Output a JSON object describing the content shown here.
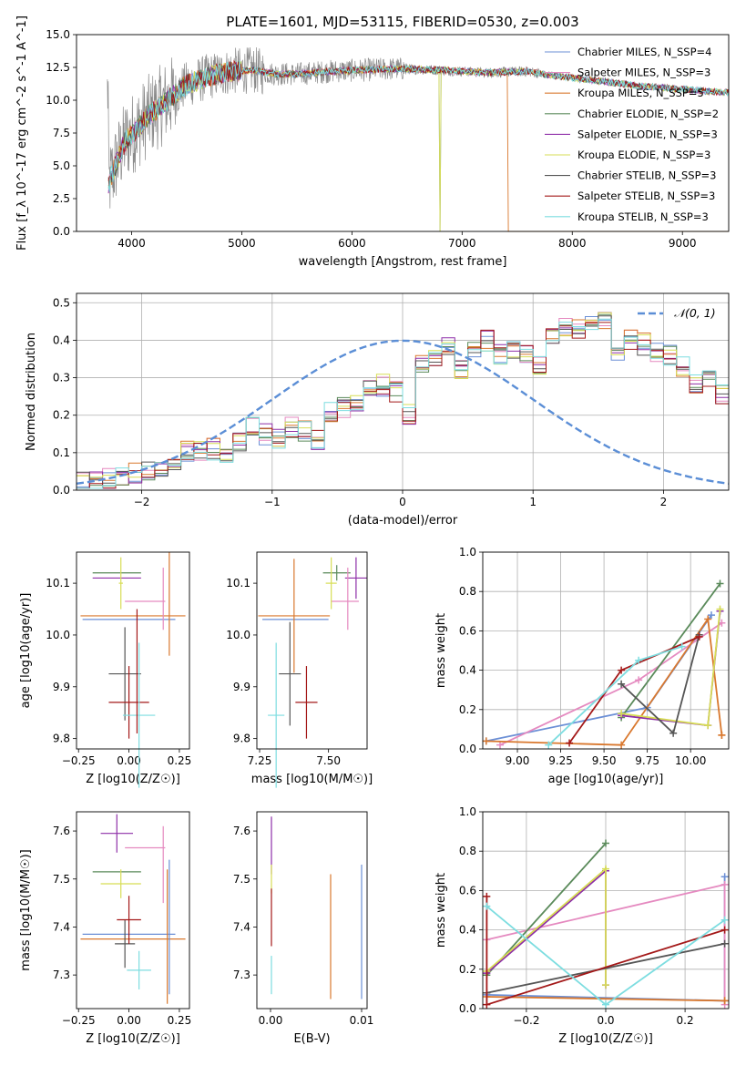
{
  "figure_title": "PLATE=1601, MJD=53115, FIBERID=0530, z=0.003",
  "colors": {
    "Chabrier MILES": "#6b8fd6",
    "Salpeter MILES": "#e58ac0",
    "Kroupa MILES": "#d9782e",
    "Chabrier ELODIE": "#5a8a5a",
    "Salpeter ELODIE": "#8e2fa8",
    "Kroupa ELODIE": "#d7dd55",
    "Chabrier STELIB": "#555555",
    "Salpeter STELIB": "#a31818",
    "Kroupa STELIB": "#7ddde0",
    "gaussian": "#5b8ed6"
  },
  "chart_data": [
    {
      "id": "spectrum",
      "type": "line",
      "title": "PLATE=1601, MJD=53115, FIBERID=0530, z=0.003",
      "xlabel": "wavelength [Angstrom, rest frame]",
      "ylabel": "Flux [f_λ 10^-17 erg cm^-2 s^-1 A^-1]",
      "xlim": [
        3500,
        9420
      ],
      "ylim": [
        0,
        15
      ],
      "xticks": [
        4000,
        5000,
        6000,
        7000,
        8000,
        9000
      ],
      "yticks": [
        0.0,
        2.5,
        5.0,
        7.5,
        10.0,
        12.5,
        15.0
      ],
      "legend": "top-right",
      "legend_entries": [
        "Chabrier MILES, N_SSP=4",
        "Salpeter MILES, N_SSP=3",
        "Kroupa MILES, N_SSP=5",
        "Chabrier ELODIE, N_SSP=2",
        "Salpeter ELODIE, N_SSP=3",
        "Kroupa ELODIE, N_SSP=3",
        "Chabrier STELIB, N_SSP=3",
        "Salpeter STELIB, N_SSP=3",
        "Kroupa STELIB, N_SSP=3"
      ],
      "continuum": {
        "x": [
          3790,
          3850,
          3950,
          4050,
          4150,
          4300,
          4500,
          4700,
          4900,
          5100,
          5300,
          5500,
          5800,
          6100,
          6400,
          6800,
          7200,
          7600,
          7800,
          8000,
          8300,
          8600,
          8900,
          9200,
          9420
        ],
        "y": [
          3.5,
          5.0,
          7.0,
          7.8,
          8.8,
          9.8,
          11.2,
          11.8,
          12.2,
          12.3,
          12.0,
          12.0,
          12.2,
          12.3,
          12.4,
          12.3,
          12.1,
          12.2,
          11.9,
          11.7,
          11.4,
          11.1,
          10.9,
          10.7,
          10.6
        ]
      },
      "data_extent": [
        3780,
        7700
      ],
      "model_extent": [
        3790,
        9420
      ],
      "dropouts": [
        {
          "series": "Kroupa MILES",
          "from": 7420
        },
        {
          "series": "Kroupa ELODIE",
          "at": 6800
        },
        {
          "series": "Chabrier MILES",
          "at": 6800
        }
      ]
    },
    {
      "id": "residual-hist",
      "type": "line",
      "xlabel": "(data-model)/error",
      "ylabel": "Normed distribution",
      "xlim": [
        -2.5,
        2.5
      ],
      "ylim": [
        0,
        0.525
      ],
      "xticks": [
        -2,
        -1,
        0,
        1,
        2
      ],
      "xtick_labels": [
        "−2",
        "−1",
        "0",
        "1",
        "2"
      ],
      "yticks": [
        0.0,
        0.1,
        0.2,
        0.3,
        0.4,
        0.5
      ],
      "grid": true,
      "legend": "top-right",
      "legend_entries": [
        "N(0,1)"
      ],
      "bin_width": 0.1,
      "bin_start": -2.5,
      "base_density": [
        0.02,
        0.025,
        0.03,
        0.035,
        0.045,
        0.05,
        0.055,
        0.075,
        0.105,
        0.1,
        0.11,
        0.09,
        0.13,
        0.17,
        0.15,
        0.14,
        0.17,
        0.16,
        0.13,
        0.21,
        0.22,
        0.23,
        0.28,
        0.28,
        0.26,
        0.2,
        0.33,
        0.35,
        0.38,
        0.32,
        0.37,
        0.4,
        0.36,
        0.37,
        0.37,
        0.33,
        0.42,
        0.44,
        0.43,
        0.45,
        0.46,
        0.37,
        0.4,
        0.39,
        0.37,
        0.36,
        0.33,
        0.28,
        0.29,
        0.26,
        0.28,
        0.26,
        0.3,
        0.24,
        0.22,
        0.26,
        0.24,
        0.2,
        0.18,
        0.18,
        0.16,
        0.15,
        0.13,
        0.1,
        0.1,
        0.08,
        0.08,
        0.06,
        0.05,
        0.045,
        0.04,
        0.035,
        0.03,
        0.025
      ]
    },
    {
      "id": "age-vs-Z",
      "type": "scatter",
      "xlabel": "Z [log10(Z/Z☉)]",
      "ylabel": "age [log10(age/yr)]",
      "xlim": [
        -0.26,
        0.3
      ],
      "ylim": [
        9.78,
        10.16
      ],
      "xticks": [
        -0.25,
        0.0,
        0.25
      ],
      "xtick_labels": [
        "−0.25",
        "0.00",
        "0.25"
      ],
      "yticks": [
        9.8,
        9.9,
        10.0,
        10.1
      ],
      "points": [
        {
          "series": "Chabrier MILES",
          "x": 0.0,
          "xerr": 0.23,
          "y": 10.03,
          "yerr": 0.0
        },
        {
          "series": "Salpeter MILES",
          "x": 0.08,
          "xerr": 0.1,
          "y": 10.065,
          "yerr": 0.0
        },
        {
          "series": "Kroupa MILES",
          "x": 0.02,
          "xerr": 0.26,
          "y": 10.037,
          "yerr": 0.0
        },
        {
          "series": "Chabrier ELODIE",
          "x": -0.06,
          "xerr": 0.12,
          "y": 10.12,
          "yerr": 0.0
        },
        {
          "series": "Salpeter ELODIE",
          "x": -0.06,
          "xerr": 0.12,
          "y": 10.11,
          "yerr": 0.0
        },
        {
          "series": "Kroupa ELODIE",
          "x": -0.04,
          "xerr": 0.01,
          "y": 10.1,
          "yerr": 0.05
        },
        {
          "series": "Chabrier STELIB",
          "x": -0.02,
          "xerr": 0.08,
          "y": 9.925,
          "yerr": 0.09
        },
        {
          "series": "Salpeter STELIB",
          "x": 0.0,
          "xerr": 0.1,
          "y": 9.87,
          "yerr": 0.07
        },
        {
          "series": "Kroupa STELIB",
          "x": 0.05,
          "xerr": 0.08,
          "y": 9.845,
          "yerr": 0.14
        },
        {
          "series": "Kroupa MILES",
          "x": 0.2,
          "xerr": 0.0,
          "y": 10.06,
          "yerr": 0.1
        },
        {
          "series": "Salpeter MILES",
          "x": 0.17,
          "xerr": 0.0,
          "y": 10.07,
          "yerr": 0.06
        },
        {
          "series": "Salpeter STELIB",
          "x": 0.04,
          "xerr": 0.0,
          "y": 9.93,
          "yerr": 0.12
        }
      ]
    },
    {
      "id": "age-vs-mass",
      "type": "scatter",
      "xlabel": "mass [log10(M/M☉)]",
      "ylabel": "",
      "xlim": [
        7.24,
        7.64
      ],
      "ylim": [
        9.78,
        10.16
      ],
      "xticks": [
        7.25,
        7.5
      ],
      "xtick_labels": [
        "7.25",
        "7.50"
      ],
      "yticks": [
        9.8,
        9.9,
        10.0,
        10.1
      ],
      "points": [
        {
          "series": "Chabrier MILES",
          "x": 7.38,
          "xerr": 0.12,
          "y": 10.03,
          "yerr": 0.0
        },
        {
          "series": "Salpeter MILES",
          "x": 7.56,
          "xerr": 0.05,
          "y": 10.065,
          "yerr": 0.0
        },
        {
          "series": "Kroupa MILES",
          "x": 7.375,
          "xerr": 0.13,
          "y": 10.037,
          "yerr": 0.11
        },
        {
          "series": "Chabrier ELODIE",
          "x": 7.53,
          "xerr": 0.05,
          "y": 10.12,
          "yerr": 0.015
        },
        {
          "series": "Salpeter ELODIE",
          "x": 7.6,
          "xerr": 0.04,
          "y": 10.11,
          "yerr": 0.04
        },
        {
          "series": "Kroupa ELODIE",
          "x": 7.51,
          "xerr": 0.02,
          "y": 10.1,
          "yerr": 0.05
        },
        {
          "series": "Chabrier STELIB",
          "x": 7.36,
          "xerr": 0.04,
          "y": 9.925,
          "yerr": 0.1
        },
        {
          "series": "Salpeter STELIB",
          "x": 7.42,
          "xerr": 0.04,
          "y": 9.87,
          "yerr": 0.07
        },
        {
          "series": "Kroupa STELIB",
          "x": 7.31,
          "xerr": 0.03,
          "y": 9.845,
          "yerr": 0.14
        },
        {
          "series": "Salpeter MILES",
          "x": 7.57,
          "xerr": 0.0,
          "y": 10.07,
          "yerr": 0.06
        }
      ]
    },
    {
      "id": "weight-vs-age",
      "type": "line",
      "xlabel": "age [log10(age/yr)]",
      "ylabel": "mass weight",
      "xlim": [
        8.8,
        10.22
      ],
      "ylim": [
        0,
        1.0
      ],
      "xticks": [
        9.0,
        9.25,
        9.5,
        9.75,
        10.0
      ],
      "xtick_labels": [
        "9.00",
        "9.25",
        "9.50",
        "9.75",
        "10.00"
      ],
      "yticks": [
        0.0,
        0.2,
        0.4,
        0.6,
        0.8,
        1.0
      ],
      "grid": true,
      "series": [
        {
          "name": "Chabrier MILES",
          "x": [
            8.82,
            9.75,
            10.12
          ],
          "y": [
            0.04,
            0.21,
            0.68
          ]
        },
        {
          "name": "Salpeter MILES",
          "x": [
            8.9,
            9.7,
            10.18
          ],
          "y": [
            0.02,
            0.35,
            0.64
          ]
        },
        {
          "name": "Kroupa MILES",
          "x": [
            8.82,
            9.6,
            10.1,
            10.18,
            10.18
          ],
          "y": [
            0.04,
            0.02,
            0.66,
            0.07,
            0.07
          ]
        },
        {
          "name": "Chabrier ELODIE",
          "x": [
            9.6,
            10.17
          ],
          "y": [
            0.16,
            0.84
          ]
        },
        {
          "name": "Salpeter ELODIE",
          "x": [
            9.6,
            10.1,
            10.17
          ],
          "y": [
            0.17,
            0.12,
            0.7
          ]
        },
        {
          "name": "Kroupa ELODIE",
          "x": [
            9.6,
            10.1,
            10.17
          ],
          "y": [
            0.18,
            0.12,
            0.71
          ]
        },
        {
          "name": "Chabrier STELIB",
          "x": [
            9.6,
            9.9,
            10.05
          ],
          "y": [
            0.33,
            0.08,
            0.58
          ]
        },
        {
          "name": "Salpeter STELIB",
          "x": [
            9.3,
            9.6,
            10.05
          ],
          "y": [
            0.03,
            0.4,
            0.57
          ]
        },
        {
          "name": "Kroupa STELIB",
          "x": [
            9.18,
            9.7,
            9.95
          ],
          "y": [
            0.02,
            0.45,
            0.52
          ]
        }
      ]
    },
    {
      "id": "mass-vs-Z",
      "type": "scatter",
      "xlabel": "Z [log10(Z/Z☉)]",
      "ylabel": "mass [log10(M/M☉)]",
      "xlim": [
        -0.26,
        0.3
      ],
      "ylim": [
        7.23,
        7.64
      ],
      "xticks": [
        -0.25,
        0.0,
        0.25
      ],
      "xtick_labels": [
        "−0.25",
        "0.00",
        "0.25"
      ],
      "yticks": [
        7.3,
        7.4,
        7.5,
        7.6
      ],
      "points": [
        {
          "series": "Chabrier MILES",
          "x": 0.0,
          "xerr": 0.23,
          "y": 7.385,
          "yerr": 0.0
        },
        {
          "series": "Salpeter MILES",
          "x": 0.08,
          "xerr": 0.1,
          "y": 7.565,
          "yerr": 0.0
        },
        {
          "series": "Kroupa MILES",
          "x": 0.02,
          "xerr": 0.26,
          "y": 7.375,
          "yerr": 0.0
        },
        {
          "series": "Chabrier ELODIE",
          "x": -0.06,
          "xerr": 0.12,
          "y": 7.515,
          "yerr": 0.0
        },
        {
          "series": "Salpeter ELODIE",
          "x": -0.06,
          "xerr": 0.08,
          "y": 7.595,
          "yerr": 0.04
        },
        {
          "series": "Kroupa ELODIE",
          "x": -0.04,
          "xerr": 0.1,
          "y": 7.49,
          "yerr": 0.03
        },
        {
          "series": "Chabrier STELIB",
          "x": -0.02,
          "xerr": 0.05,
          "y": 7.365,
          "yerr": 0.05
        },
        {
          "series": "Salpeter STELIB",
          "x": 0.0,
          "xerr": 0.06,
          "y": 7.415,
          "yerr": 0.05
        },
        {
          "series": "Kroupa STELIB",
          "x": 0.05,
          "xerr": 0.06,
          "y": 7.31,
          "yerr": 0.04
        },
        {
          "series": "Chabrier MILES",
          "x": 0.2,
          "xerr": 0.0,
          "y": 7.4,
          "yerr": 0.14
        },
        {
          "series": "Kroupa MILES",
          "x": 0.19,
          "xerr": 0.0,
          "y": 7.38,
          "yerr": 0.14
        },
        {
          "series": "Salpeter MILES",
          "x": 0.17,
          "xerr": 0.0,
          "y": 7.53,
          "yerr": 0.08
        }
      ]
    },
    {
      "id": "mass-vs-EBV",
      "type": "scatter",
      "xlabel": "E(B-V)",
      "ylabel": "",
      "xlim": [
        -0.0015,
        0.0106
      ],
      "ylim": [
        7.23,
        7.64
      ],
      "xticks": [
        0.0,
        0.01
      ],
      "xtick_labels": [
        "0.00",
        "0.01"
      ],
      "yticks": [
        7.3,
        7.4,
        7.5,
        7.6
      ],
      "points": [
        {
          "series": "Salpeter ELODIE",
          "x": 0.0001,
          "xerr": 0.0,
          "y": 7.57,
          "yerr": 0.06
        },
        {
          "series": "Kroupa ELODIE",
          "x": 0.0001,
          "xerr": 0.0,
          "y": 7.5,
          "yerr": 0.03
        },
        {
          "series": "Salpeter STELIB",
          "x": 0.0001,
          "xerr": 0.0,
          "y": 7.42,
          "yerr": 0.06
        },
        {
          "series": "Kroupa STELIB",
          "x": 0.0001,
          "xerr": 0.0,
          "y": 7.3,
          "yerr": 0.04
        },
        {
          "series": "Kroupa MILES",
          "x": 0.0066,
          "xerr": 0.0,
          "y": 7.38,
          "yerr": 0.13
        },
        {
          "series": "Chabrier MILES",
          "x": 0.01,
          "xerr": 0.0,
          "y": 7.39,
          "yerr": 0.14
        }
      ]
    },
    {
      "id": "weight-vs-Z",
      "type": "line",
      "xlabel": "Z [log10(Z/Z☉)]",
      "ylabel": "mass weight",
      "xlim": [
        -0.31,
        0.31
      ],
      "ylim": [
        0,
        1.0
      ],
      "xticks": [
        -0.2,
        0.0,
        0.2
      ],
      "xtick_labels": [
        "−0.2",
        "0.0",
        "0.2"
      ],
      "yticks": [
        0.0,
        0.2,
        0.4,
        0.6,
        0.8,
        1.0
      ],
      "grid": true,
      "series": [
        {
          "name": "Chabrier MILES",
          "x": [
            -0.3,
            0.3,
            0.3
          ],
          "y": [
            0.07,
            0.04,
            0.67
          ]
        },
        {
          "name": "Salpeter MILES",
          "x": [
            -0.3,
            0.3,
            0.3
          ],
          "y": [
            0.35,
            0.63,
            0.02
          ]
        },
        {
          "name": "Kroupa MILES",
          "x": [
            -0.3,
            0.3,
            0.3
          ],
          "y": [
            0.06,
            0.04,
            0.04
          ]
        },
        {
          "name": "Chabrier ELODIE",
          "x": [
            -0.3,
            0.0
          ],
          "y": [
            0.17,
            0.84
          ]
        },
        {
          "name": "Salpeter ELODIE",
          "x": [
            -0.3,
            0.0,
            0.0
          ],
          "y": [
            0.18,
            0.7,
            0.12
          ]
        },
        {
          "name": "Kroupa ELODIE",
          "x": [
            -0.3,
            0.0,
            0.0
          ],
          "y": [
            0.19,
            0.71,
            0.12
          ]
        },
        {
          "name": "Chabrier STELIB",
          "x": [
            -0.3,
            0.3
          ],
          "y": [
            0.08,
            0.33
          ]
        },
        {
          "name": "Salpeter STELIB",
          "x": [
            -0.3,
            -0.3,
            0.3
          ],
          "y": [
            0.57,
            0.02,
            0.4
          ]
        },
        {
          "name": "Kroupa STELIB",
          "x": [
            -0.3,
            0.0,
            0.3
          ],
          "y": [
            0.52,
            0.02,
            0.45
          ]
        }
      ]
    }
  ]
}
